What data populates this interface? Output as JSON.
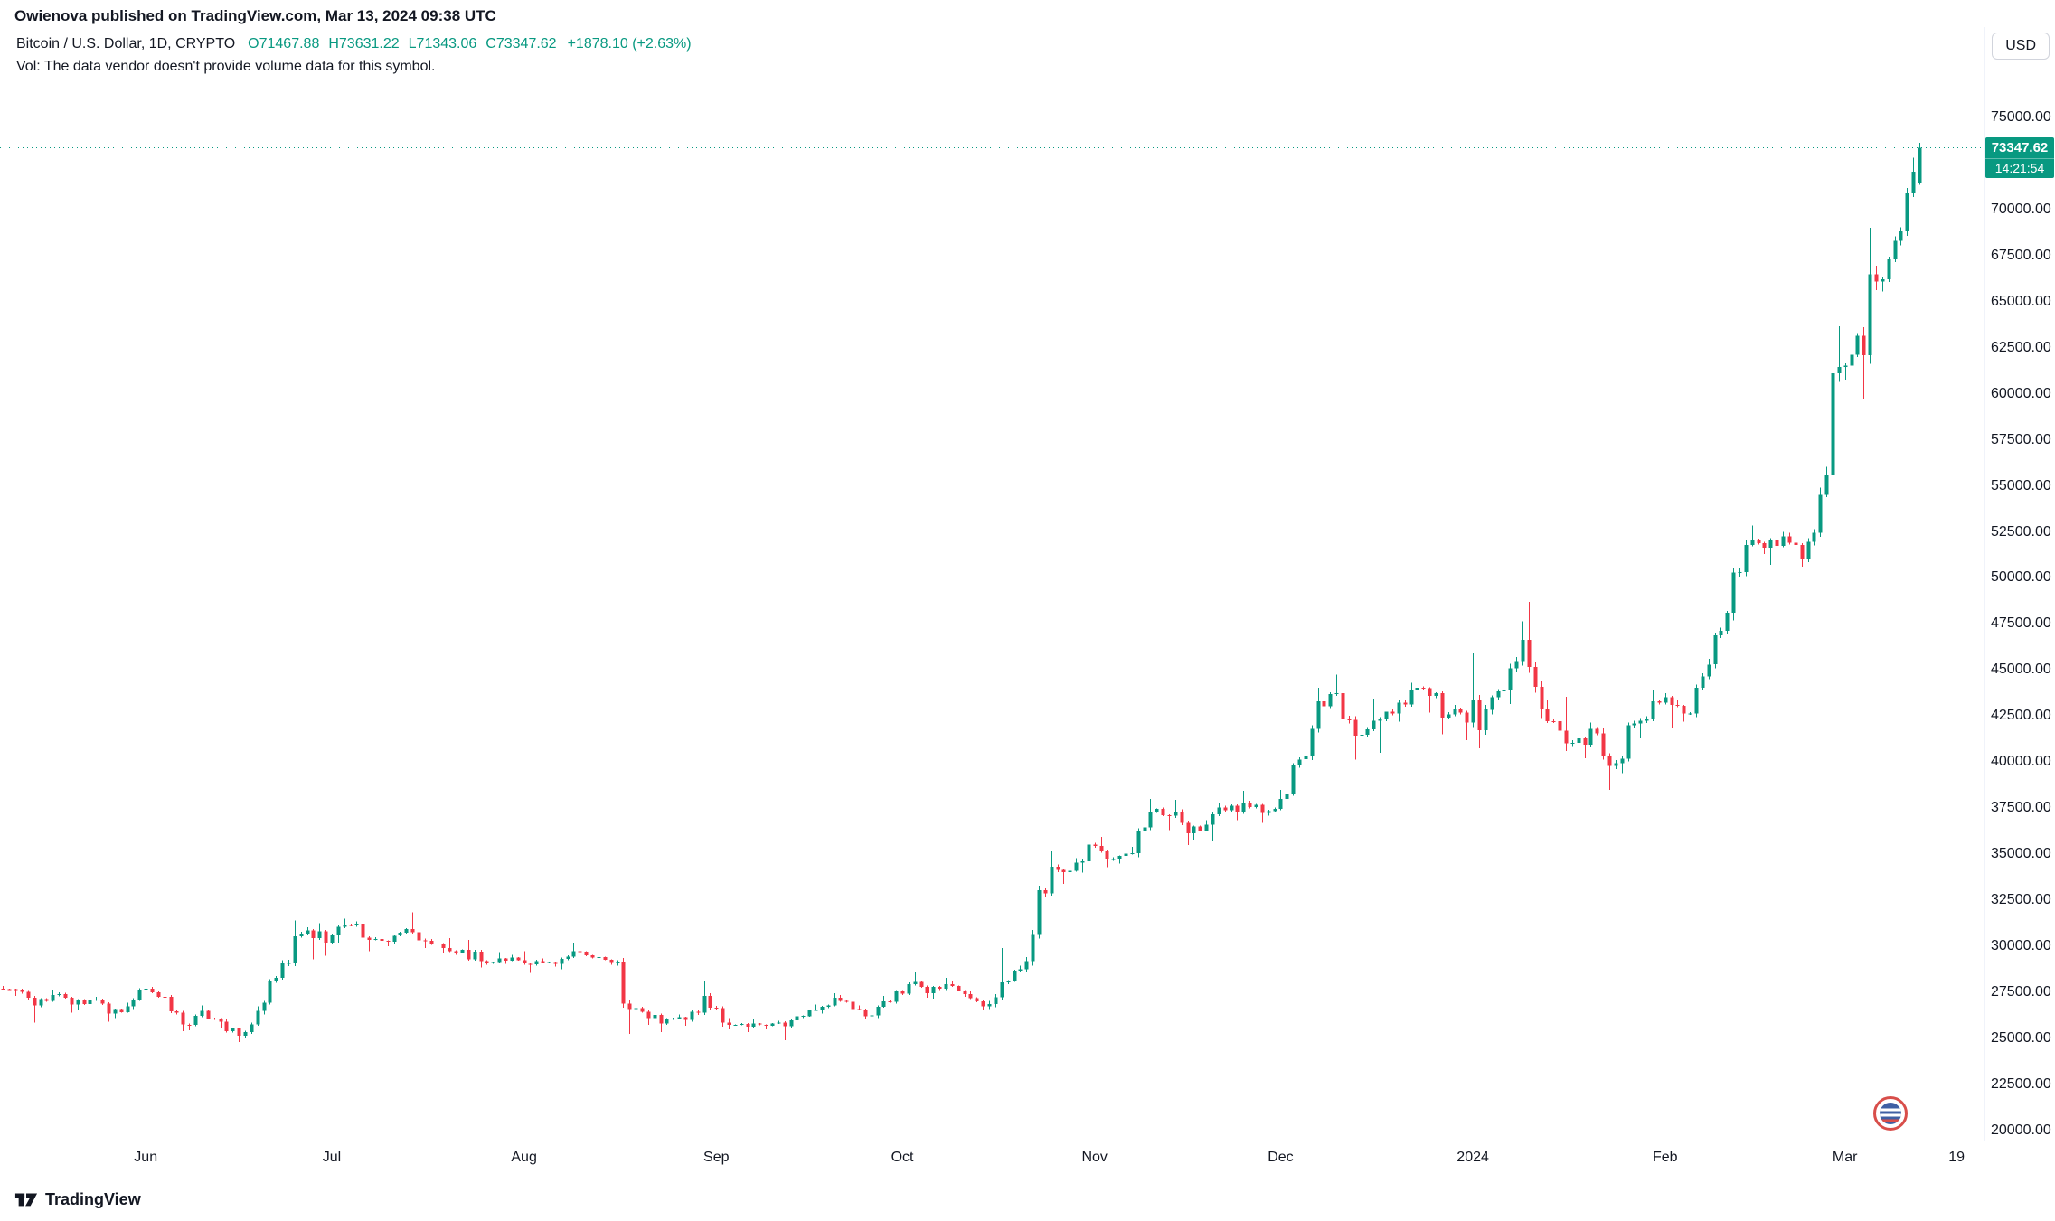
{
  "attribution": "Owienova published on TradingView.com, Mar 13, 2024 09:38 UTC",
  "header": {
    "symbol": "Bitcoin / U.S. Dollar, 1D, CRYPTO",
    "o_label": "O",
    "o": "71467.88",
    "h_label": "H",
    "h": "73631.22",
    "l_label": "L",
    "l": "71343.06",
    "c_label": "C",
    "c": "73347.62",
    "change": "+1878.10 (+2.63%)",
    "vol_note": "Vol: The data vendor doesn't provide volume data for this symbol."
  },
  "currency_button": {
    "label": "USD"
  },
  "price_badge": {
    "price": "73347.62",
    "countdown": "14:21:54"
  },
  "footer": {
    "brand": "TradingView"
  },
  "colors": {
    "up": "#089981",
    "down": "#f23645",
    "text": "#131722",
    "axis_border": "#e0e3eb",
    "badge": "#089981",
    "background": "#ffffff"
  },
  "chart_data": {
    "type": "candlestick",
    "title": "Bitcoin / U.S. Dollar, 1D, CRYPTO",
    "last_price": 73347.62,
    "y_axis": {
      "min": 20000,
      "max": 75000,
      "step": 2500,
      "format": "0.00"
    },
    "y_domain": [
      19460,
      79900
    ],
    "x_total_slots": 320,
    "days_per_candle": 3,
    "grid": "off",
    "legend_position": "top-left",
    "x_ticks": [
      {
        "label": "Jun",
        "day": 23
      },
      {
        "label": "Jul",
        "day": 53
      },
      {
        "label": "Aug",
        "day": 84
      },
      {
        "label": "Sep",
        "day": 115
      },
      {
        "label": "Oct",
        "day": 145
      },
      {
        "label": "Nov",
        "day": 176
      },
      {
        "label": "Dec",
        "day": 206
      },
      {
        "label": "2024",
        "day": 237
      },
      {
        "label": "Feb",
        "day": 268
      },
      {
        "label": "Mar",
        "day": 297
      },
      {
        "label": "19",
        "day": 315
      }
    ],
    "candles": [
      [
        "2023-05-09",
        27700,
        27850,
        27300,
        27650
      ],
      [
        "2023-05-12",
        27650,
        27700,
        25850,
        26800
      ],
      [
        "2023-05-15",
        26800,
        27650,
        26700,
        27350
      ],
      [
        "2023-05-18",
        27350,
        27500,
        26400,
        26850
      ],
      [
        "2023-05-21",
        26850,
        27300,
        26550,
        27100
      ],
      [
        "2023-05-24",
        27100,
        27250,
        25900,
        26350
      ],
      [
        "2023-05-27",
        26350,
        26950,
        26100,
        26750
      ],
      [
        "2023-05-30",
        26750,
        28050,
        26600,
        27700
      ],
      [
        "2023-06-02",
        27700,
        27800,
        26850,
        27250
      ],
      [
        "2023-06-05",
        27250,
        27350,
        25400,
        25750
      ],
      [
        "2023-06-08",
        25750,
        26800,
        25450,
        26500
      ],
      [
        "2023-06-11",
        26500,
        26550,
        25600,
        25900
      ],
      [
        "2023-06-14",
        25900,
        26050,
        24800,
        25150
      ],
      [
        "2023-06-17",
        25150,
        26750,
        25050,
        26500
      ],
      [
        "2023-06-20",
        26500,
        28400,
        26300,
        28300
      ],
      [
        "2023-06-23",
        28300,
        31400,
        28200,
        30550
      ],
      [
        "2023-06-26",
        30550,
        31050,
        29300,
        30450
      ],
      [
        "2023-06-29",
        30450,
        31250,
        29500,
        30600
      ],
      [
        "2023-07-02",
        30600,
        31500,
        30200,
        31150
      ],
      [
        "2023-07-05",
        31150,
        31350,
        29750,
        30350
      ],
      [
        "2023-07-08",
        30350,
        30500,
        30000,
        30250
      ],
      [
        "2023-07-11",
        30250,
        31000,
        30100,
        30950
      ],
      [
        "2023-07-14",
        30950,
        31850,
        29900,
        30300
      ],
      [
        "2023-07-17",
        30300,
        30400,
        29650,
        29900
      ],
      [
        "2023-07-20",
        29900,
        30450,
        29550,
        29800
      ],
      [
        "2023-07-23",
        29800,
        30350,
        28850,
        29200
      ],
      [
        "2023-07-26",
        29200,
        29700,
        29000,
        29350
      ],
      [
        "2023-07-29",
        29350,
        29550,
        29050,
        29250
      ],
      [
        "2023-08-01",
        29250,
        29750,
        28550,
        29200
      ],
      [
        "2023-08-04",
        29200,
        29350,
        28900,
        29050
      ],
      [
        "2023-08-07",
        29050,
        30200,
        28750,
        29750
      ],
      [
        "2023-08-10",
        29750,
        29950,
        29350,
        29400
      ],
      [
        "2023-08-13",
        29400,
        29500,
        29000,
        29150
      ],
      [
        "2023-08-16",
        29150,
        29250,
        25250,
        26600
      ],
      [
        "2023-08-19",
        26600,
        26800,
        25750,
        26100
      ],
      [
        "2023-08-22",
        26100,
        26550,
        25350,
        26050
      ],
      [
        "2023-08-25",
        26050,
        26300,
        25700,
        26000
      ],
      [
        "2023-08-28",
        26000,
        28150,
        25900,
        27300
      ],
      [
        "2023-08-31",
        27300,
        27450,
        25650,
        25850
      ],
      [
        "2023-09-03",
        25850,
        26100,
        25500,
        25800
      ],
      [
        "2023-09-06",
        25800,
        26050,
        25350,
        25750
      ],
      [
        "2023-09-09",
        25750,
        25950,
        25500,
        25850
      ],
      [
        "2023-09-12",
        25850,
        26450,
        24900,
        26200
      ],
      [
        "2023-09-15",
        26200,
        26850,
        26100,
        26550
      ],
      [
        "2023-09-18",
        26550,
        27450,
        26350,
        27200
      ],
      [
        "2023-09-21",
        27200,
        27350,
        26400,
        26600
      ],
      [
        "2023-09-24",
        26600,
        26800,
        26050,
        26250
      ],
      [
        "2023-09-27",
        26250,
        27300,
        26100,
        27000
      ],
      [
        "2023-09-30",
        27000,
        28050,
        26900,
        27950
      ],
      [
        "2023-10-03",
        27950,
        28600,
        27200,
        27450
      ],
      [
        "2023-10-06",
        27450,
        28300,
        27150,
        27950
      ],
      [
        "2023-10-09",
        27950,
        28100,
        27250,
        27400
      ],
      [
        "2023-10-12",
        27400,
        27550,
        26550,
        26750
      ],
      [
        "2023-10-15",
        26750,
        29900,
        26600,
        28050
      ],
      [
        "2023-10-18",
        28050,
        28950,
        27950,
        28750
      ],
      [
        "2023-10-21",
        28750,
        33300,
        28600,
        33050
      ],
      [
        "2023-10-24",
        33050,
        35150,
        32700,
        34150
      ],
      [
        "2023-10-27",
        34150,
        34800,
        33400,
        34550
      ],
      [
        "2023-10-30",
        34550,
        35950,
        34000,
        35450
      ],
      [
        "2023-11-02",
        35450,
        35950,
        34300,
        34750
      ],
      [
        "2023-11-05",
        34750,
        35400,
        34500,
        35050
      ],
      [
        "2023-11-08",
        35050,
        38000,
        34850,
        37300
      ],
      [
        "2023-11-11",
        37300,
        37500,
        36300,
        37100
      ],
      [
        "2023-11-14",
        37100,
        37950,
        35500,
        36150
      ],
      [
        "2023-11-17",
        36150,
        36850,
        35800,
        36600
      ],
      [
        "2023-11-20",
        36600,
        37750,
        35700,
        37400
      ],
      [
        "2023-11-23",
        37400,
        38450,
        36850,
        37750
      ],
      [
        "2023-11-26",
        37750,
        37900,
        36700,
        37250
      ],
      [
        "2023-11-29",
        37250,
        38500,
        37100,
        38000
      ],
      [
        "2023-12-02",
        38000,
        40250,
        37850,
        40150
      ],
      [
        "2023-12-05",
        40150,
        44050,
        40000,
        43300
      ],
      [
        "2023-12-08",
        43300,
        44750,
        42800,
        43750
      ],
      [
        "2023-12-11",
        43750,
        43850,
        40150,
        41450
      ],
      [
        "2023-12-14",
        41450,
        43450,
        41200,
        42250
      ],
      [
        "2023-12-17",
        42250,
        42750,
        40500,
        42650
      ],
      [
        "2023-12-20",
        42650,
        44300,
        42200,
        43950
      ],
      [
        "2023-12-23",
        43950,
        44050,
        42700,
        43600
      ],
      [
        "2023-12-26",
        43600,
        43800,
        41500,
        42600
      ],
      [
        "2023-12-29",
        42600,
        43100,
        41200,
        42150
      ],
      [
        "2024-01-01",
        42150,
        45900,
        40750,
        42850
      ],
      [
        "2024-01-04",
        42850,
        44750,
        42600,
        43950
      ],
      [
        "2024-01-07",
        43950,
        47650,
        43150,
        46650
      ],
      [
        "2024-01-10",
        46650,
        48700,
        42400,
        42850
      ],
      [
        "2024-01-13",
        42850,
        43400,
        41450,
        41700
      ],
      [
        "2024-01-16",
        41700,
        43550,
        40600,
        41300
      ],
      [
        "2024-01-19",
        41300,
        42150,
        40200,
        41550
      ],
      [
        "2024-01-22",
        41550,
        41850,
        38500,
        39950
      ],
      [
        "2024-01-25",
        39950,
        42250,
        39400,
        42100
      ],
      [
        "2024-01-28",
        42100,
        43900,
        41300,
        43300
      ],
      [
        "2024-01-31",
        43300,
        43750,
        41850,
        43100
      ],
      [
        "2024-02-03",
        43100,
        43400,
        42200,
        42650
      ],
      [
        "2024-02-06",
        42650,
        45600,
        42450,
        45300
      ],
      [
        "2024-02-09",
        45300,
        48200,
        45100,
        48100
      ],
      [
        "2024-02-12",
        48100,
        52050,
        47700,
        51800
      ],
      [
        "2024-02-15",
        51800,
        52850,
        51300,
        51650
      ],
      [
        "2024-02-18",
        51650,
        52500,
        50700,
        52250
      ],
      [
        "2024-02-21",
        52250,
        52450,
        50600,
        51000
      ],
      [
        "2024-02-24",
        51000,
        54900,
        50850,
        54500
      ],
      [
        "2024-02-27",
        54500,
        63650,
        54400,
        61450
      ],
      [
        "2024-03-01",
        61450,
        63250,
        60750,
        63150
      ],
      [
        "2024-03-04",
        63150,
        69000,
        59700,
        66100
      ],
      [
        "2024-03-07",
        66100,
        68550,
        65550,
        68300
      ],
      [
        "2024-03-10",
        68300,
        72800,
        68050,
        72050
      ],
      [
        "2024-03-13",
        71467.88,
        73631.22,
        71343.06,
        73347.62
      ]
    ]
  }
}
